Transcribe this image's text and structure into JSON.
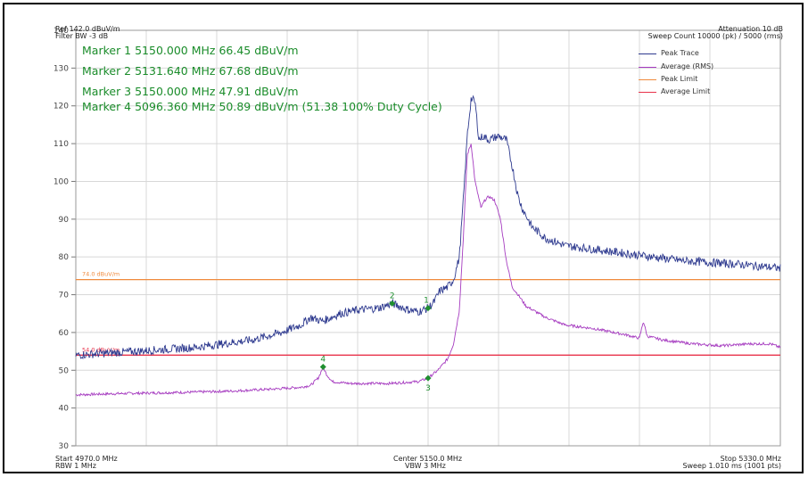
{
  "colors": {
    "peak": "#2e3a8f",
    "average": "#a63cc0",
    "peak_limit": "#f08a3c",
    "average_limit": "#e8324a",
    "marker": "#1f8f2f",
    "grid": "#d8d8d8"
  },
  "header": {
    "ref": "Ref 142.0 dBuV/m",
    "filter": "Filter BW -3 dB",
    "attenuation": "Attenuation 10 dB",
    "sweep_count": "Sweep Count 10000 (pk) / 5000 (rms)"
  },
  "markers_text": [
    "Marker 1 5150.000 MHz 66.45 dBuV/m",
    "Marker 2 5131.640 MHz 67.68 dBuV/m",
    "Marker 3 5150.000 MHz 47.91 dBuV/m",
    "Marker 4 5096.360 MHz 50.89 dBuV/m (51.38 100% Duty Cycle)"
  ],
  "footer": {
    "start": "Start 4970.0 MHz",
    "rbw": "RBW 1 MHz",
    "center": "Center 5150.0 MHz",
    "vbw": "VBW 3 MHz",
    "stop": "Stop 5330.0 MHz",
    "sweep": "Sweep 1.010 ms (1001 pts)"
  },
  "limit_labels": {
    "peak": "74.0 dBuV/m",
    "average": "54.0 dBuV/m"
  },
  "chart_data": {
    "type": "line",
    "xlim": [
      4970,
      5330
    ],
    "ylim": [
      30,
      140
    ],
    "grid": true,
    "legend_position": "top-right",
    "yticks": [
      30,
      40,
      50,
      60,
      70,
      80,
      90,
      100,
      110,
      120,
      130,
      140
    ],
    "legend": [
      "Peak Trace",
      "Average (RMS)",
      "Peak Limit",
      "Average Limit"
    ],
    "series": [
      {
        "name": "Peak Trace",
        "x": [
          4970,
          4985,
          5000,
          5015,
          5030,
          5045,
          5060,
          5075,
          5085,
          5090,
          5096,
          5105,
          5115,
          5125,
          5131.64,
          5140,
          5145,
          5150,
          5153,
          5156,
          5160,
          5163,
          5166,
          5168,
          5170,
          5172,
          5174,
          5176,
          5178,
          5181,
          5186,
          5190,
          5193,
          5196,
          5198,
          5200,
          5203,
          5210,
          5220,
          5235,
          5250,
          5265,
          5280,
          5295,
          5310,
          5320,
          5330
        ],
        "values": [
          54,
          54.5,
          55,
          55.5,
          56,
          57,
          58,
          60,
          62,
          64,
          63,
          65,
          66,
          66.5,
          67.68,
          66,
          65.5,
          66.45,
          68,
          71,
          72,
          74,
          80,
          95,
          112,
          122,
          121,
          111,
          112,
          111,
          112,
          111,
          104,
          96,
          93,
          91,
          88,
          85,
          83,
          82,
          81,
          80,
          79,
          78.5,
          78,
          77.5,
          77
        ]
      },
      {
        "name": "Average (RMS)",
        "x": [
          4970,
          4990,
          5010,
          5030,
          5050,
          5070,
          5085,
          5090,
          5094,
          5096.36,
          5098,
          5101,
          5110,
          5130,
          5145,
          5150,
          5155,
          5160,
          5163,
          5166,
          5168,
          5170,
          5172,
          5174,
          5177,
          5179,
          5181,
          5184,
          5187,
          5190,
          5193,
          5196,
          5200,
          5210,
          5220,
          5235,
          5250,
          5258,
          5260,
          5262,
          5270,
          5285,
          5300,
          5315,
          5325,
          5330
        ],
        "values": [
          43.5,
          43.8,
          44,
          44.2,
          44.5,
          45,
          45.5,
          46,
          48,
          50.89,
          49,
          47,
          46.5,
          46.5,
          47,
          47.91,
          50,
          53,
          57,
          66,
          85,
          107,
          110,
          100,
          93,
          95,
          96,
          95,
          90,
          79,
          72,
          70,
          67,
          64,
          62,
          61,
          59.5,
          58.5,
          63,
          59,
          58,
          57,
          56.5,
          57,
          57,
          56
        ]
      },
      {
        "name": "Peak Limit",
        "x": [
          4970,
          5330
        ],
        "values": [
          74,
          74
        ]
      },
      {
        "name": "Average Limit",
        "x": [
          4970,
          5330
        ],
        "values": [
          54,
          54
        ]
      }
    ],
    "markers": [
      {
        "label": "1",
        "x": 5150.0,
        "y": 66.45,
        "trace": "Peak Trace"
      },
      {
        "label": "2",
        "x": 5131.64,
        "y": 67.68,
        "trace": "Peak Trace"
      },
      {
        "label": "3",
        "x": 5150.0,
        "y": 47.91,
        "trace": "Average (RMS)"
      },
      {
        "label": "4",
        "x": 5096.36,
        "y": 50.89,
        "trace": "Average (RMS)"
      }
    ]
  }
}
